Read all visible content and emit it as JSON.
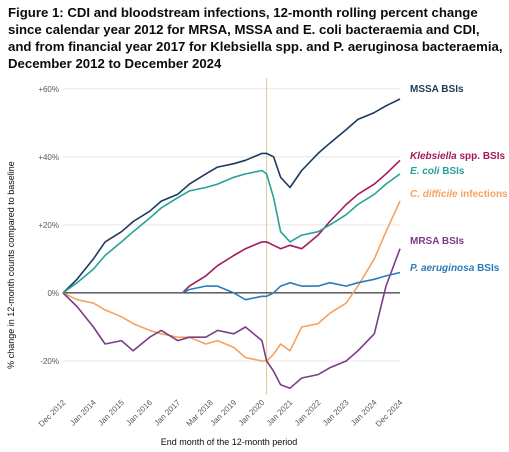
{
  "title": "Figure 1: CDI and bloodstream infections, 12-month rolling percent change since calendar year 2012 for MRSA, MSSA and E. coli bacteraemia and CDI, and from financial year 2017 for Klebsiella spp. and P. aeruginosa bacteraemia, December 2012 to December 2024",
  "chart_data": {
    "type": "line",
    "title": "Figure 1: CDI and bloodstream infections, 12-month rolling percent change since calendar year 2012 for MRSA, MSSA and E. coli bacteraemia and CDI, and from financial year 2017 for Klebsiella spp. and P. aeruginosa bacteraemia, December 2012 to December 2024",
    "xlabel": "End month of the 12-month period",
    "ylabel": "% change in 12-month counts compared to baseline",
    "x_range": [
      "2012-12",
      "2024-12"
    ],
    "ylim": [
      -30,
      62
    ],
    "y_ticks": [
      -20,
      0,
      20,
      40,
      60
    ],
    "y_tick_labels": [
      "-20%",
      "0%",
      "+20%",
      "+40%",
      "+60%"
    ],
    "x_tick_labels": [
      "Dec 2012",
      "Jan 2014",
      "Jan 2015",
      "Jan 2016",
      "Jan 2017",
      "Mar 2018",
      "Jan 2019",
      "Jan 2020",
      "Jan 2021",
      "Jan 2022",
      "Jan 2023",
      "Jan 2024",
      "Dec 2024"
    ],
    "x_tick_dates": [
      "2012-12",
      "2014-01",
      "2015-01",
      "2016-01",
      "2017-01",
      "2018-03",
      "2019-01",
      "2020-01",
      "2021-01",
      "2022-01",
      "2023-01",
      "2024-01",
      "2024-12"
    ],
    "reference_line_y": 0,
    "reference_line_x": "2020-03",
    "grid": "horizontal",
    "series": [
      {
        "name": "MSSA BSIs",
        "label_parts": [
          {
            "text": "MSSA BSIs",
            "italic": false
          }
        ],
        "color": "#1d3a5c",
        "x": [
          "2012-12",
          "2013-06",
          "2014-01",
          "2014-06",
          "2015-01",
          "2015-06",
          "2016-01",
          "2016-06",
          "2017-01",
          "2017-06",
          "2018-01",
          "2018-06",
          "2019-01",
          "2019-06",
          "2020-01",
          "2020-03",
          "2020-06",
          "2020-09",
          "2021-01",
          "2021-06",
          "2022-01",
          "2022-06",
          "2023-01",
          "2023-06",
          "2024-01",
          "2024-06",
          "2024-12"
        ],
        "values": [
          0,
          4,
          10,
          15,
          18,
          21,
          24,
          27,
          29,
          32,
          35,
          37,
          38,
          39,
          41,
          41,
          40,
          34,
          31,
          36,
          41,
          44,
          48,
          51,
          53,
          55,
          57
        ]
      },
      {
        "name": "Klebsiella spp. BSIs",
        "label_parts": [
          {
            "text": "Klebsiella",
            "italic": true
          },
          {
            "text": " spp. BSIs",
            "italic": false
          }
        ],
        "color": "#a3195b",
        "x": [
          "2017-03",
          "2017-06",
          "2018-01",
          "2018-06",
          "2019-01",
          "2019-06",
          "2020-01",
          "2020-03",
          "2020-06",
          "2020-09",
          "2021-01",
          "2021-06",
          "2022-01",
          "2022-06",
          "2023-01",
          "2023-06",
          "2024-01",
          "2024-06",
          "2024-12"
        ],
        "values": [
          0,
          2,
          5,
          8,
          11,
          13,
          15,
          15,
          14,
          13,
          14,
          13,
          17,
          21,
          26,
          29,
          32,
          35,
          39
        ]
      },
      {
        "name": "E. coli BSIs",
        "label_parts": [
          {
            "text": "E. coli",
            "italic": true
          },
          {
            "text": " BSIs",
            "italic": false
          }
        ],
        "color": "#28a197",
        "x": [
          "2012-12",
          "2013-06",
          "2014-01",
          "2014-06",
          "2015-01",
          "2015-06",
          "2016-01",
          "2016-06",
          "2017-01",
          "2017-06",
          "2018-01",
          "2018-06",
          "2019-01",
          "2019-06",
          "2020-01",
          "2020-03",
          "2020-06",
          "2020-09",
          "2021-01",
          "2021-06",
          "2022-01",
          "2022-06",
          "2023-01",
          "2023-06",
          "2024-01",
          "2024-06",
          "2024-12"
        ],
        "values": [
          0,
          3,
          7,
          11,
          15,
          18,
          22,
          25,
          28,
          30,
          31,
          32,
          34,
          35,
          36,
          35,
          28,
          18,
          15,
          17,
          18,
          20,
          23,
          26,
          29,
          32,
          35
        ]
      },
      {
        "name": "C. difficile infections",
        "label_parts": [
          {
            "text": "C. difficile",
            "italic": true
          },
          {
            "text": " infections",
            "italic": false
          }
        ],
        "color": "#f4a261",
        "x": [
          "2012-12",
          "2013-06",
          "2014-01",
          "2014-06",
          "2015-01",
          "2015-06",
          "2016-01",
          "2016-06",
          "2017-01",
          "2017-06",
          "2018-01",
          "2018-06",
          "2019-01",
          "2019-06",
          "2020-01",
          "2020-03",
          "2020-06",
          "2020-09",
          "2021-01",
          "2021-06",
          "2022-01",
          "2022-06",
          "2023-01",
          "2023-06",
          "2024-01",
          "2024-06",
          "2024-12"
        ],
        "values": [
          0,
          -2,
          -3,
          -5,
          -7,
          -9,
          -11,
          -12,
          -13,
          -13,
          -15,
          -14,
          -16,
          -19,
          -20,
          -20,
          -18,
          -15,
          -17,
          -10,
          -9,
          -6,
          -3,
          2,
          10,
          18,
          27
        ]
      },
      {
        "name": "MRSA BSIs",
        "label_parts": [
          {
            "text": "MRSA BSIs",
            "italic": false
          }
        ],
        "color": "#7a3d86",
        "x": [
          "2012-12",
          "2013-06",
          "2014-01",
          "2014-06",
          "2015-01",
          "2015-06",
          "2016-01",
          "2016-06",
          "2017-01",
          "2017-06",
          "2018-01",
          "2018-06",
          "2019-01",
          "2019-06",
          "2020-01",
          "2020-03",
          "2020-06",
          "2020-09",
          "2021-01",
          "2021-06",
          "2022-01",
          "2022-06",
          "2023-01",
          "2023-06",
          "2024-01",
          "2024-06",
          "2024-12"
        ],
        "values": [
          0,
          -4,
          -10,
          -15,
          -14,
          -17,
          -13,
          -11,
          -14,
          -13,
          -13,
          -11,
          -12,
          -10,
          -14,
          -20,
          -23,
          -27,
          -28,
          -25,
          -24,
          -22,
          -20,
          -17,
          -12,
          2,
          13
        ]
      },
      {
        "name": "P. aeruginosa BSIs",
        "label_parts": [
          {
            "text": "P. aeruginosa",
            "italic": true
          },
          {
            "text": " BSIs",
            "italic": false
          }
        ],
        "color": "#2b7bba",
        "x": [
          "2017-03",
          "2017-06",
          "2018-01",
          "2018-06",
          "2019-01",
          "2019-06",
          "2020-01",
          "2020-03",
          "2020-06",
          "2020-09",
          "2021-01",
          "2021-06",
          "2022-01",
          "2022-06",
          "2023-01",
          "2023-06",
          "2024-01",
          "2024-06",
          "2024-12"
        ],
        "values": [
          0,
          1,
          2,
          2,
          0,
          -2,
          -1,
          -1,
          0,
          2,
          3,
          2,
          2,
          3,
          2,
          3,
          4,
          5,
          6
        ]
      }
    ]
  }
}
